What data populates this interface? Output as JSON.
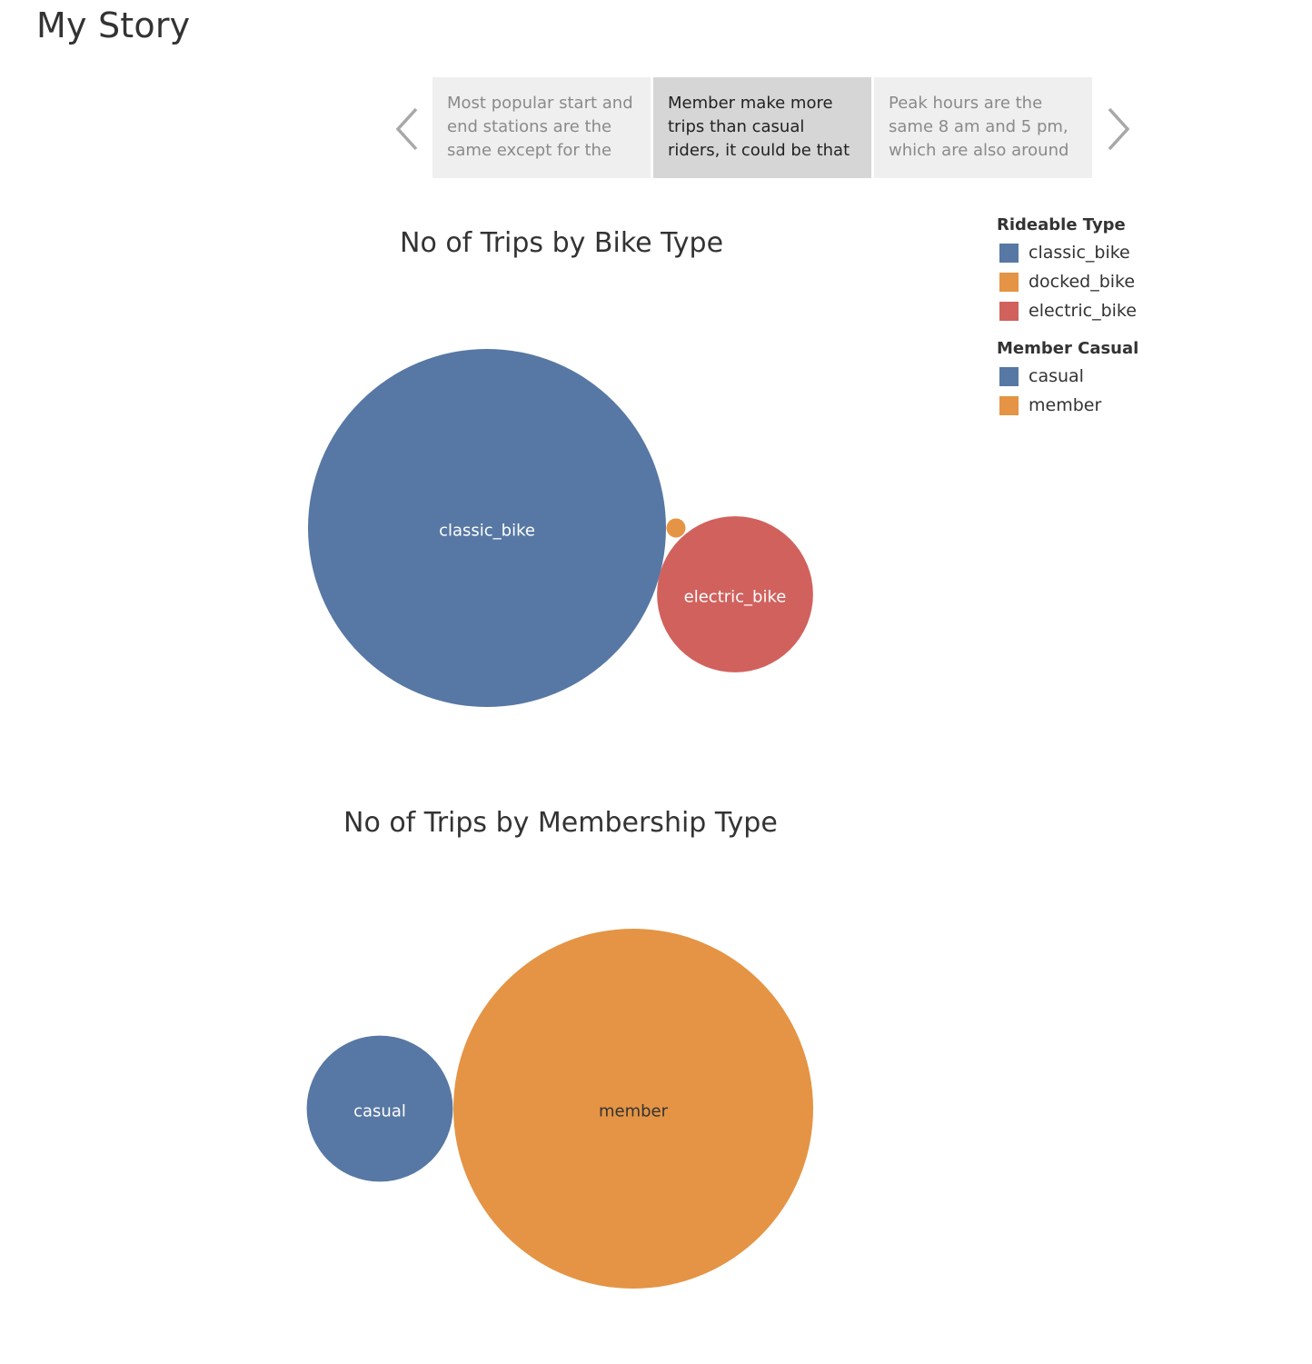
{
  "story": {
    "title": "My Story",
    "points": [
      {
        "text": "Most popular start and end stations are the same except for the",
        "active": false
      },
      {
        "text": "Member make more trips than casual riders, it could be that",
        "active": true
      },
      {
        "text": "Peak hours are the same 8 am and 5 pm, which are also around",
        "active": false
      }
    ],
    "nav": {
      "prev_icon": "chevron-left-icon",
      "next_icon": "chevron-right-icon"
    }
  },
  "legend": {
    "rideable_title": "Rideable Type",
    "rideable_items": [
      {
        "label": "classic_bike",
        "color": "#5778a4"
      },
      {
        "label": "docked_bike",
        "color": "#e49444"
      },
      {
        "label": "electric_bike",
        "color": "#d1615d"
      }
    ],
    "member_title": "Member Casual",
    "member_items": [
      {
        "label": "casual",
        "color": "#5778a4"
      },
      {
        "label": "member",
        "color": "#e49444"
      }
    ]
  },
  "chart_data": [
    {
      "type": "bubble",
      "title": "No of Trips by Bike Type",
      "categories": [
        "classic_bike",
        "docked_bike",
        "electric_bike"
      ],
      "values": [
        1000,
        2,
        190
      ],
      "colors": [
        "#5778a4",
        "#e49444",
        "#d1615d"
      ],
      "labels_shown": [
        "classic_bike",
        "",
        "electric_bike"
      ]
    },
    {
      "type": "bubble",
      "title": "No of Trips by Membership Type",
      "categories": [
        "casual",
        "member"
      ],
      "values": [
        165,
        1000
      ],
      "colors": [
        "#5778a4",
        "#e49444"
      ],
      "labels_shown": [
        "casual",
        "member"
      ]
    }
  ]
}
